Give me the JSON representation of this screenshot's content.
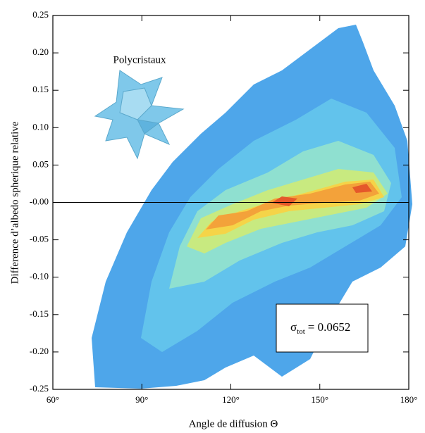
{
  "chart_data": {
    "type": "contour",
    "xlabel": "Angle de diffusion Θ",
    "ylabel": "Difference d’albedo spherique relative",
    "xlim": [
      60,
      180
    ],
    "xticks": [
      {
        "value": 60,
        "label": "60°"
      },
      {
        "value": 90,
        "label": "90°"
      },
      {
        "value": 120,
        "label": "120°"
      },
      {
        "value": 150,
        "label": "150°"
      },
      {
        "value": 180,
        "label": "180°"
      }
    ],
    "ylim": [
      -0.25,
      0.25
    ],
    "yticks": [
      0.25,
      {
        "value": 0.2,
        "label": "0.20"
      },
      0.15,
      {
        "value": 0.1,
        "label": "0.10"
      },
      0.05,
      {
        "value": 0,
        "label": "-0.00"
      },
      -0.05,
      {
        "value": -0.1,
        "label": "-0.10"
      },
      -0.15,
      {
        "value": -0.2,
        "label": "-0.20"
      },
      -0.25
    ],
    "hline": 0,
    "inset_label": "Polycristaux",
    "annotation": {
      "symbol": "σ",
      "subscript": "tot",
      "text": "= 0.0652"
    }
  }
}
